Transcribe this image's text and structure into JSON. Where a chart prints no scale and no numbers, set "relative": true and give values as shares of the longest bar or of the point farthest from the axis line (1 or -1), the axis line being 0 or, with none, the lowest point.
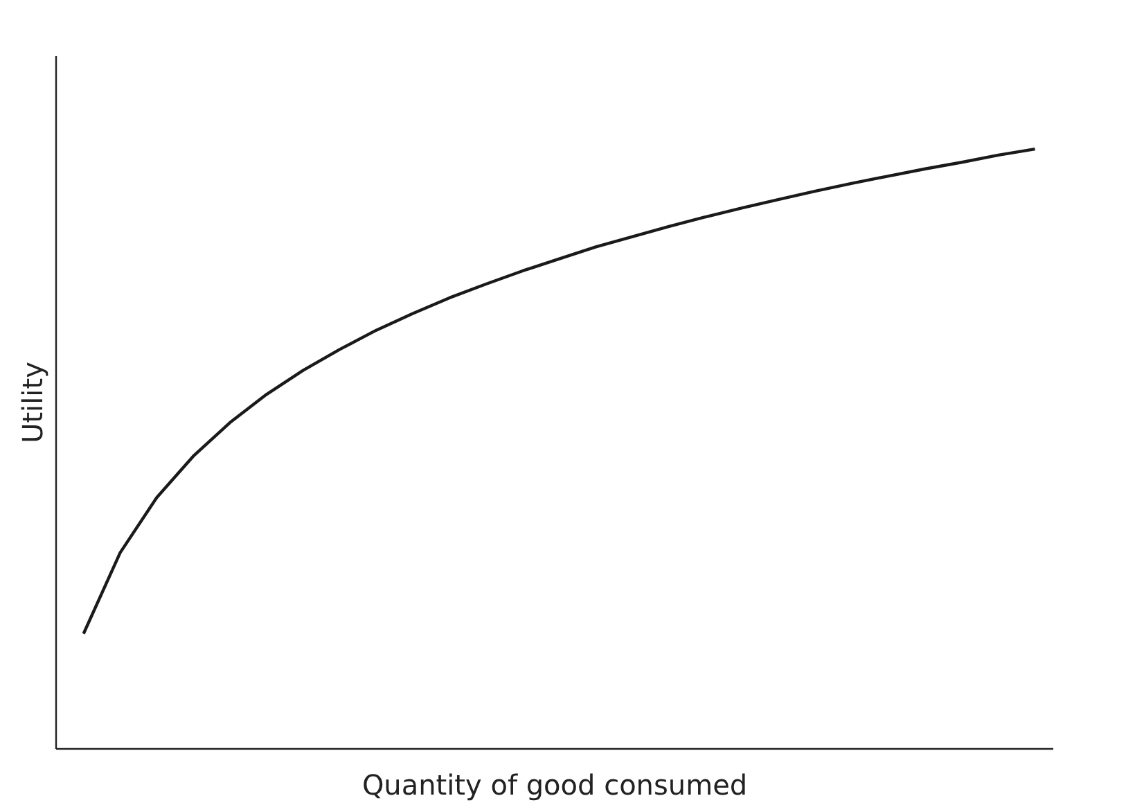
{
  "chart_data": {
    "type": "line",
    "relative": true,
    "xlabel": "Quantity of good consumed",
    "ylabel": "Utility",
    "categories": [
      null,
      null,
      null,
      null,
      null,
      null,
      null,
      null,
      null,
      null,
      null,
      null,
      null,
      null,
      null,
      null,
      null,
      null,
      null,
      null,
      null,
      null,
      null,
      null,
      null,
      null,
      null
    ],
    "series": [
      {
        "color": "#1a1a1a",
        "values": [
          0.192,
          0.327,
          0.419,
          0.488,
          0.544,
          0.591,
          0.631,
          0.666,
          0.698,
          0.726,
          0.752,
          0.775,
          0.797,
          0.817,
          0.837,
          0.854,
          0.871,
          0.887,
          0.902,
          0.916,
          0.93,
          0.943,
          0.955,
          0.967,
          0.978,
          0.99,
          1.0
        ]
      }
    ]
  }
}
